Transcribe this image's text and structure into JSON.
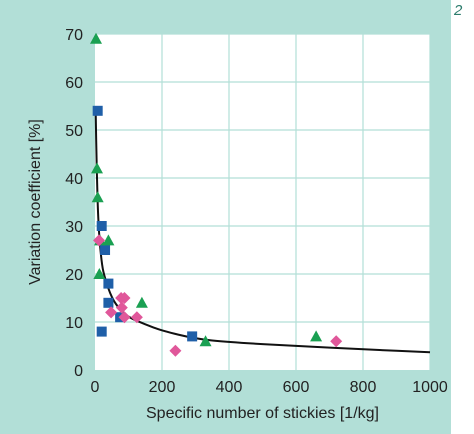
{
  "figure_number": "2",
  "colors": {
    "panel_background": "#b2dfd7",
    "plot_background": "#ffffff",
    "grid": "#b2dfd7",
    "curve": "#111111",
    "series_squares": "#1f5fa8",
    "series_triangles": "#1aa052",
    "series_diamonds": "#e0579a"
  },
  "chart_data": {
    "type": "scatter",
    "title": "",
    "xlabel": "Specific number of stickies [1/kg]",
    "ylabel": "Variation coefficient [%]",
    "xlim": [
      0,
      1000
    ],
    "ylim": [
      0,
      70
    ],
    "x_ticks": [
      0,
      200,
      400,
      600,
      800,
      1000
    ],
    "y_ticks": [
      0,
      10,
      20,
      30,
      40,
      50,
      60,
      70
    ],
    "grid": true,
    "legend": "none",
    "series": [
      {
        "marker": "square",
        "color": "#1f5fa8",
        "points": [
          [
            8,
            54
          ],
          [
            20,
            30
          ],
          [
            30,
            25
          ],
          [
            40,
            18
          ],
          [
            40,
            14
          ],
          [
            20,
            8
          ],
          [
            75,
            11
          ],
          [
            290,
            7
          ]
        ]
      },
      {
        "marker": "triangle",
        "color": "#1aa052",
        "points": [
          [
            3,
            69
          ],
          [
            6,
            42
          ],
          [
            8,
            36
          ],
          [
            13,
            20
          ],
          [
            15,
            27
          ],
          [
            40,
            27
          ],
          [
            140,
            14
          ],
          [
            330,
            6
          ],
          [
            660,
            7
          ]
        ]
      },
      {
        "marker": "diamond",
        "color": "#e0579a",
        "points": [
          [
            12,
            27
          ],
          [
            48,
            12
          ],
          [
            78,
            15
          ],
          [
            88,
            15
          ],
          [
            80,
            13
          ],
          [
            88,
            11
          ],
          [
            125,
            11
          ],
          [
            240,
            4
          ],
          [
            720,
            6
          ]
        ]
      }
    ],
    "fit_curve": {
      "description_points": [
        [
          2,
          54
        ],
        [
          5,
          42
        ],
        [
          10,
          30
        ],
        [
          20,
          22
        ],
        [
          30,
          19
        ],
        [
          50,
          15
        ],
        [
          75,
          12.5
        ],
        [
          100,
          11
        ],
        [
          150,
          9.5
        ],
        [
          200,
          8.2
        ],
        [
          300,
          6.5
        ],
        [
          400,
          5.8
        ],
        [
          600,
          5
        ],
        [
          800,
          4.3
        ],
        [
          1000,
          3.7
        ]
      ]
    }
  }
}
